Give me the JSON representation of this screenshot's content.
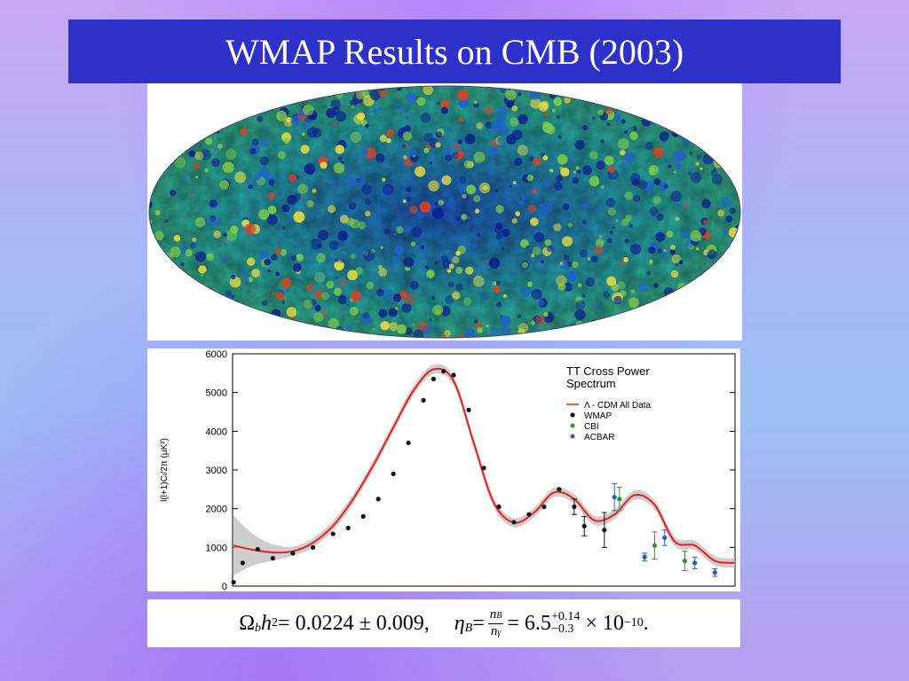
{
  "slide": {
    "title": "WMAP Results on CMB (2003)"
  },
  "sky_map": {
    "description_icon": "cmb-sky-map",
    "colors": [
      "#0a1f8f",
      "#1f5fd0",
      "#2bb3b0",
      "#7fd04a",
      "#f0e040",
      "#e04020"
    ]
  },
  "equation": {
    "part1": "Ω",
    "part1_sub": "b",
    "part1_rest": "h",
    "part1_sup": "2",
    "part1_value": " = 0.0224 ± 0.009,",
    "eta": "η",
    "eta_sub": "B",
    "equals": " = ",
    "frac_num": "n",
    "frac_num_sub": "B",
    "frac_den": "n",
    "frac_den_sub": "γ",
    "value_base": " = 6.5",
    "value_sup": "+0.14",
    "value_sub": "−0.3",
    "value_tail": " × 10",
    "value_exp": "−10",
    "period": "."
  },
  "chart_data": {
    "type": "scatter",
    "legend_title": "TT Cross Power Spectrum",
    "ylabel": "l(l+1)Cₗ/2π (μK²)",
    "ylim": [
      0,
      6000
    ],
    "yticks": [
      "0",
      "1000",
      "2000",
      "3000",
      "4000",
      "5000",
      "6000"
    ],
    "xlim": [
      0,
      1000
    ],
    "legend_placement": "top-right",
    "series": [
      {
        "name": "Λ - CDM All Data",
        "kind": "model",
        "color": "#e8231e",
        "x": [
          2,
          40,
          80,
          120,
          160,
          200,
          240,
          280,
          320,
          360,
          400,
          440,
          480,
          520,
          560,
          600,
          640,
          680,
          720,
          760,
          800,
          840,
          880,
          920,
          960,
          1000
        ],
        "y": [
          1050,
          940,
          870,
          900,
          1120,
          1560,
          2250,
          3120,
          4100,
          5050,
          5600,
          5300,
          3700,
          2150,
          1640,
          1900,
          2420,
          2250,
          1700,
          1850,
          2350,
          2100,
          1150,
          1050,
          650,
          600
        ]
      },
      {
        "name": "WMAP",
        "color": "#111111",
        "x": [
          2,
          20,
          50,
          80,
          120,
          160,
          200,
          230,
          260,
          290,
          320,
          350,
          380,
          400,
          420,
          440,
          470,
          500,
          530,
          560,
          590,
          620,
          650,
          680,
          700,
          740
        ],
        "y": [
          100,
          600,
          950,
          720,
          850,
          1000,
          1350,
          1500,
          1800,
          2250,
          2900,
          3700,
          4800,
          5350,
          5550,
          5450,
          4550,
          3050,
          2050,
          1650,
          1850,
          2050,
          2500,
          2050,
          1550,
          1450
        ],
        "err": [
          0,
          0,
          0,
          0,
          0,
          0,
          0,
          0,
          0,
          0,
          0,
          0,
          0,
          0,
          0,
          0,
          0,
          0,
          0,
          0,
          0,
          0,
          0,
          200,
          250,
          450
        ]
      },
      {
        "name": "CBI",
        "color": "#2a9a2a",
        "x": [
          770,
          840,
          900
        ],
        "y": [
          2250,
          1050,
          650
        ],
        "err": [
          300,
          350,
          250
        ]
      },
      {
        "name": "ACBAR",
        "color": "#2a5bbf",
        "x": [
          760,
          820,
          860,
          920,
          960
        ],
        "y": [
          2300,
          750,
          1250,
          600,
          350
        ],
        "err": [
          350,
          100,
          200,
          150,
          100
        ]
      }
    ]
  }
}
